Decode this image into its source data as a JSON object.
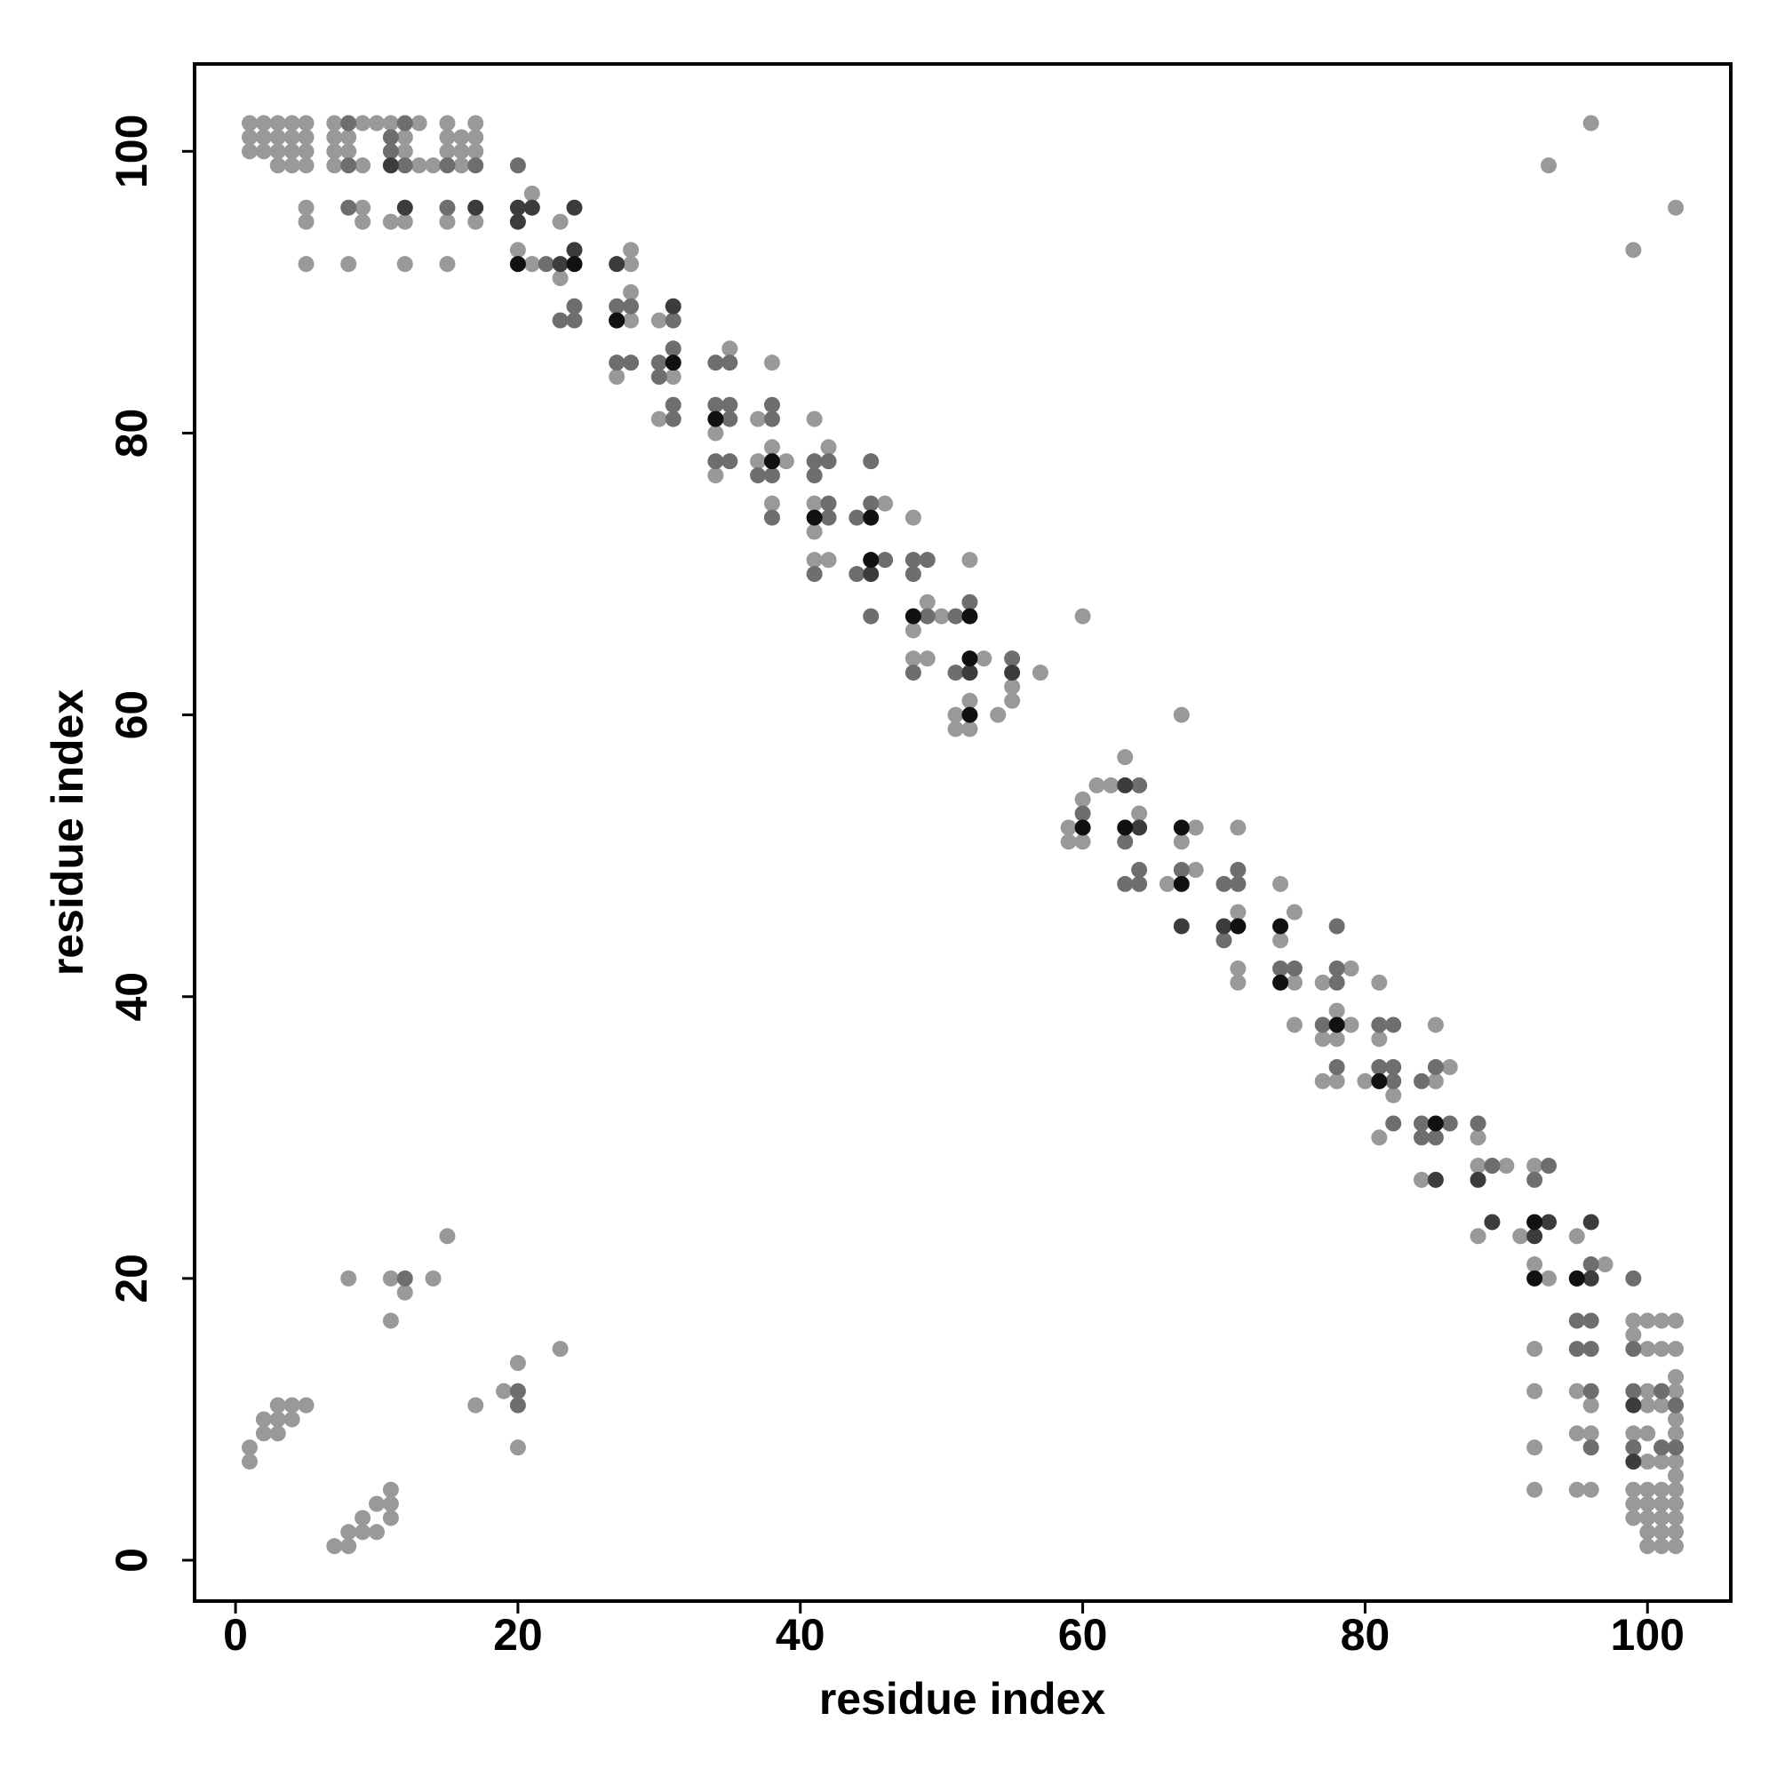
{
  "chart_data": {
    "type": "scatter",
    "xlabel": "residue index",
    "ylabel": "residue index",
    "xlim": [
      -2.9,
      105.9
    ],
    "ylim": [
      -2.9,
      106.2
    ],
    "xticks": [
      0,
      20,
      40,
      60,
      80,
      100
    ],
    "yticks": [
      0,
      20,
      40,
      60,
      80,
      100
    ],
    "series": [
      {
        "color": "#999999",
        "x": [
          1,
          1,
          1,
          1,
          1,
          2,
          2,
          2,
          2,
          2,
          3,
          3,
          3,
          3,
          3,
          3,
          3,
          4,
          4,
          4,
          4,
          4,
          4,
          5,
          5,
          5,
          5,
          5,
          5,
          5,
          5,
          7,
          7,
          7,
          7,
          7,
          8,
          8,
          8,
          8,
          8,
          8,
          9,
          9,
          9,
          9,
          9,
          9,
          10,
          10,
          10,
          11,
          11,
          11,
          11,
          11,
          11,
          11,
          12,
          12,
          12,
          12,
          12,
          13,
          13,
          14,
          14,
          15,
          15,
          15,
          15,
          15,
          15,
          16,
          16,
          16,
          17,
          17,
          17,
          17,
          17,
          19,
          20,
          20,
          20,
          21,
          21,
          23,
          23,
          23,
          27,
          28,
          28,
          28,
          28,
          30,
          30,
          31,
          34,
          34,
          35,
          37,
          37,
          38,
          38,
          38,
          39,
          41,
          41,
          41,
          41,
          42,
          42,
          46,
          48,
          48,
          48,
          49,
          49,
          50,
          51,
          51,
          52,
          52,
          52,
          53,
          54,
          55,
          55,
          57,
          59,
          59,
          60,
          60,
          60,
          61,
          62,
          63,
          64,
          66,
          67,
          67,
          68,
          68,
          71,
          71,
          71,
          71,
          74,
          74,
          75,
          75,
          75,
          77,
          77,
          77,
          78,
          78,
          78,
          79,
          79,
          80,
          81,
          81,
          81,
          82,
          84,
          85,
          85,
          86,
          88,
          88,
          88,
          90,
          91,
          92,
          92,
          92,
          92,
          92,
          92,
          93,
          93,
          95,
          95,
          95,
          95,
          96,
          96,
          96,
          96,
          97,
          99,
          99,
          99,
          99,
          99,
          99,
          99,
          100,
          100,
          100,
          100,
          100,
          100,
          100,
          100,
          100,
          100,
          100,
          101,
          101,
          101,
          101,
          101,
          101,
          101,
          101,
          101,
          101,
          101,
          102,
          102,
          102,
          102,
          102,
          102,
          102,
          102,
          102,
          102,
          102,
          102,
          102,
          102,
          102,
          102
        ],
        "values": [
          100,
          101,
          102,
          8,
          7,
          100,
          101,
          102,
          9,
          10,
          99,
          100,
          101,
          102,
          11,
          10,
          9,
          99,
          100,
          101,
          102,
          11,
          10,
          99,
          100,
          101,
          102,
          96,
          95,
          92,
          11,
          99,
          100,
          101,
          102,
          1,
          100,
          101,
          92,
          2,
          1,
          20,
          102,
          99,
          96,
          95,
          3,
          2,
          102,
          4,
          2,
          102,
          95,
          5,
          4,
          3,
          20,
          17,
          101,
          100,
          95,
          92,
          19,
          102,
          99,
          99,
          20,
          102,
          101,
          100,
          95,
          92,
          23,
          101,
          100,
          99,
          102,
          101,
          100,
          95,
          11,
          12,
          93,
          14,
          8,
          97,
          92,
          95,
          91,
          15,
          84,
          93,
          92,
          90,
          88,
          88,
          81,
          84,
          80,
          77,
          86,
          81,
          78,
          85,
          79,
          75,
          78,
          81,
          75,
          73,
          71,
          79,
          71,
          75,
          74,
          66,
          64,
          68,
          64,
          67,
          60,
          59,
          71,
          61,
          59,
          64,
          60,
          62,
          61,
          63,
          52,
          51,
          67,
          54,
          51,
          55,
          55,
          57,
          53,
          48,
          60,
          51,
          52,
          49,
          52,
          46,
          42,
          41,
          48,
          44,
          46,
          41,
          38,
          41,
          37,
          34,
          39,
          37,
          34,
          42,
          38,
          34,
          41,
          37,
          30,
          33,
          27,
          38,
          34,
          35,
          30,
          28,
          23,
          28,
          23,
          28,
          21,
          15,
          12,
          8,
          5,
          20,
          99,
          23,
          12,
          9,
          5,
          11,
          9,
          5,
          102,
          21,
          17,
          16,
          9,
          5,
          4,
          3,
          93,
          17,
          15,
          12,
          11,
          9,
          7,
          5,
          4,
          3,
          2,
          1,
          17,
          15,
          12,
          11,
          8,
          7,
          5,
          4,
          3,
          2,
          1,
          17,
          15,
          13,
          12,
          11,
          10,
          9,
          8,
          7,
          6,
          5,
          4,
          3,
          2,
          1,
          96
        ]
      },
      {
        "color": "#6e6e6e",
        "x": [
          8,
          8,
          8,
          11,
          11,
          11,
          12,
          12,
          12,
          15,
          15,
          17,
          20,
          20,
          20,
          22,
          23,
          24,
          24,
          27,
          27,
          28,
          28,
          30,
          30,
          31,
          31,
          31,
          31,
          34,
          34,
          34,
          35,
          35,
          35,
          35,
          37,
          38,
          38,
          38,
          38,
          41,
          41,
          41,
          42,
          42,
          42,
          44,
          44,
          45,
          45,
          45,
          46,
          48,
          48,
          48,
          49,
          49,
          51,
          51,
          52,
          52,
          55,
          60,
          63,
          63,
          64,
          64,
          64,
          67,
          70,
          70,
          71,
          71,
          74,
          75,
          77,
          78,
          78,
          78,
          78,
          81,
          81,
          82,
          82,
          82,
          82,
          84,
          84,
          84,
          85,
          85,
          86,
          88,
          89,
          92,
          93,
          95,
          95,
          95,
          96,
          96,
          96,
          96,
          96,
          99,
          99,
          99,
          99,
          101,
          101,
          102,
          102
        ],
        "values": [
          102,
          99,
          96,
          101,
          100,
          99,
          102,
          99,
          20,
          99,
          96,
          99,
          99,
          12,
          11,
          92,
          88,
          88,
          89,
          89,
          85,
          89,
          85,
          85,
          84,
          86,
          88,
          82,
          81,
          85,
          82,
          78,
          82,
          81,
          85,
          78,
          77,
          82,
          81,
          77,
          74,
          78,
          77,
          70,
          78,
          75,
          74,
          74,
          70,
          75,
          78,
          67,
          71,
          71,
          70,
          63,
          67,
          71,
          67,
          63,
          68,
          63,
          64,
          53,
          51,
          48,
          55,
          49,
          48,
          49,
          48,
          44,
          49,
          48,
          42,
          42,
          38,
          42,
          41,
          45,
          35,
          38,
          35,
          38,
          35,
          34,
          31,
          34,
          31,
          30,
          35,
          30,
          31,
          31,
          28,
          27,
          28,
          20,
          17,
          15,
          21,
          17,
          15,
          12,
          8,
          20,
          15,
          12,
          8,
          12,
          8,
          11,
          8
        ]
      },
      {
        "color": "#3c3c3c",
        "x": [
          11,
          12,
          17,
          20,
          20,
          21,
          23,
          24,
          24,
          27,
          27,
          31,
          45,
          52,
          55,
          63,
          64,
          67,
          70,
          85,
          88,
          89,
          92,
          93,
          96,
          96,
          99,
          99
        ],
        "values": [
          99,
          96,
          96,
          96,
          95,
          96,
          92,
          96,
          93,
          88,
          92,
          89,
          70,
          63,
          63,
          55,
          52,
          45,
          45,
          27,
          27,
          24,
          23,
          24,
          24,
          20,
          11,
          7
        ]
      },
      {
        "color": "#111111",
        "x": [
          20,
          24,
          27,
          31,
          34,
          38,
          41,
          45,
          45,
          48,
          52,
          52,
          52,
          60,
          63,
          67,
          67,
          71,
          74,
          74,
          78,
          81,
          85,
          92,
          92,
          95
        ],
        "values": [
          92,
          92,
          88,
          85,
          81,
          78,
          74,
          74,
          71,
          67,
          67,
          64,
          60,
          52,
          52,
          52,
          48,
          45,
          45,
          41,
          38,
          34,
          31,
          24,
          20,
          20
        ]
      }
    ]
  }
}
